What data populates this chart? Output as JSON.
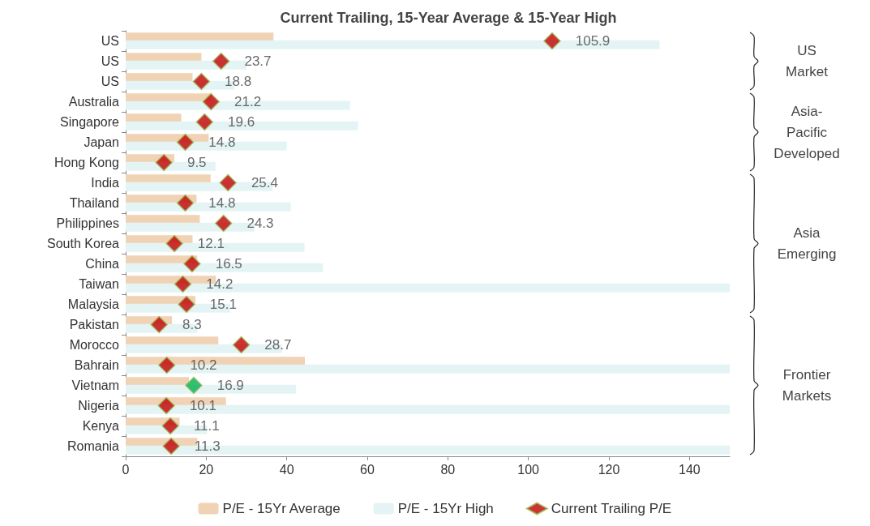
{
  "chart_data": {
    "type": "bar",
    "orientation": "horizontal",
    "title": "Current Trailing, 15-Year Average & 15-Year High",
    "categories": [
      "US",
      "US",
      "US",
      "Australia",
      "Singapore",
      "Japan",
      "Hong Kong",
      "India",
      "Thailand",
      "Philippines",
      "South Korea",
      "China",
      "Taiwan",
      "Malaysia",
      "Pakistan",
      "Morocco",
      "Bahrain",
      "Vietnam",
      "Nigeria",
      "Kenya",
      "Romania"
    ],
    "series": [
      {
        "name": "P/E - 15Yr Average",
        "type": "bar",
        "color": "#f0d2b4",
        "values": [
          36.7,
          18.8,
          16.6,
          21.4,
          13.8,
          20.6,
          12.1,
          21.1,
          17.6,
          18.4,
          16.6,
          17.8,
          22.4,
          17.3,
          11.5,
          23.0,
          44.5,
          15.7,
          24.9,
          13.4,
          17.8
        ]
      },
      {
        "name": "P/E - 15Yr High",
        "type": "bar",
        "color": "#e4f4f4",
        "values": [
          132.6,
          30,
          27,
          55.7,
          57.7,
          40.0,
          22.3,
          36.5,
          41.0,
          32,
          44.4,
          49.0,
          150,
          26,
          17.8,
          38.8,
          150,
          42.3,
          150,
          20.2,
          150
        ]
      },
      {
        "name": "Current Trailing P/E",
        "type": "scatter",
        "marker": "diamond",
        "color": "#c00000",
        "colors": [
          "#c00000",
          "#c00000",
          "#c00000",
          "#c00000",
          "#c00000",
          "#c00000",
          "#c00000",
          "#c00000",
          "#c00000",
          "#c00000",
          "#c00000",
          "#c00000",
          "#c00000",
          "#c00000",
          "#c00000",
          "#c00000",
          "#c00000",
          "#00b050",
          "#c00000",
          "#c00000",
          "#c00000"
        ],
        "values": [
          105.9,
          23.7,
          18.8,
          21.2,
          19.6,
          14.8,
          9.5,
          25.4,
          14.8,
          24.3,
          12.1,
          16.5,
          14.2,
          15.1,
          8.3,
          28.7,
          10.2,
          16.9,
          10.1,
          11.1,
          11.3
        ],
        "value_labels": [
          "105.9",
          "23.7",
          "18.8",
          "21.2",
          "19.6",
          "14.8",
          "9.5",
          "25.4",
          "14.8",
          "24.3",
          "12.1",
          "16.5",
          "14.2",
          "15.1",
          "8.3",
          "28.7",
          "10.2",
          "16.9",
          "10.1",
          "11.1",
          "11.3"
        ]
      }
    ],
    "xlim": [
      0,
      150
    ],
    "xticks": [
      0,
      20,
      40,
      60,
      80,
      100,
      120,
      140
    ],
    "grid": false,
    "legend": "bottom",
    "annotations": [
      "US Market",
      "Asia-Pacific Developed",
      "Asia Emerging",
      "Frontier Markets"
    ]
  }
}
